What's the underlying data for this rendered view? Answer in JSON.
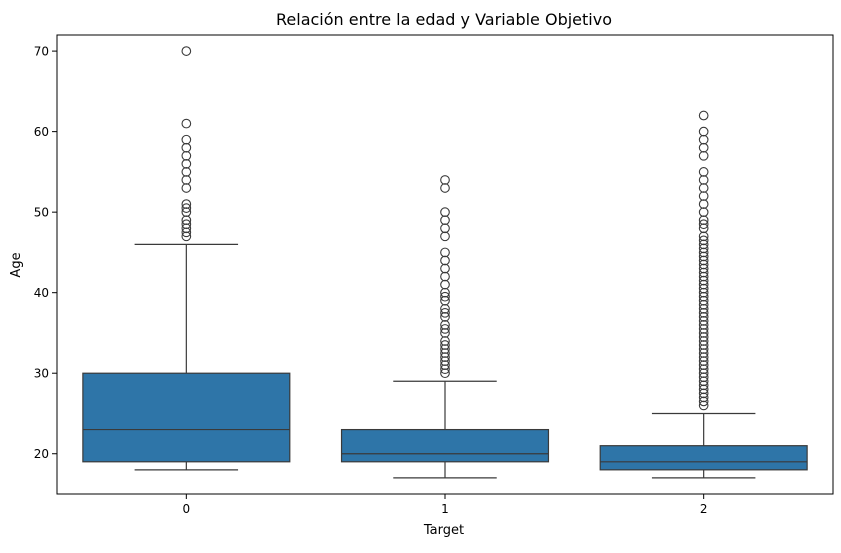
{
  "chart_data": {
    "type": "box",
    "title": "Relación entre la edad y Variable Objetivo",
    "xlabel": "Target",
    "ylabel": "Age",
    "categories": [
      "0",
      "1",
      "2"
    ],
    "ylim": [
      15,
      72
    ],
    "yticks": [
      20,
      30,
      40,
      50,
      60,
      70
    ],
    "grid": false,
    "box_color": "#2e75a8",
    "line_color": "#3a3a3a",
    "boxes": [
      {
        "category": "0",
        "whisker_low": 18,
        "q1": 19,
        "median": 23,
        "q3": 30,
        "whisker_high": 46,
        "outliers": [
          47,
          47.5,
          48,
          48.5,
          49,
          50,
          50.5,
          51,
          53,
          54,
          55,
          56,
          57,
          58,
          59,
          61,
          70
        ]
      },
      {
        "category": "1",
        "whisker_low": 17,
        "q1": 19,
        "median": 20,
        "q3": 23,
        "whisker_high": 29,
        "outliers": [
          30,
          30.5,
          31,
          31.5,
          32,
          32.5,
          33,
          33.5,
          34,
          35,
          35.5,
          36,
          37,
          37.5,
          38,
          39,
          39.5,
          40,
          41,
          42,
          43,
          44,
          45,
          47,
          48,
          49,
          50,
          53,
          54
        ]
      },
      {
        "category": "2",
        "whisker_low": 17,
        "q1": 18,
        "median": 19,
        "q3": 21,
        "whisker_high": 25,
        "outliers": [
          26,
          26.5,
          27,
          27.5,
          28,
          28.5,
          29,
          29.5,
          30,
          30.5,
          31,
          31.5,
          32,
          32.5,
          33,
          33.5,
          34,
          34.5,
          35,
          35.5,
          36,
          36.5,
          37,
          37.5,
          38,
          38.5,
          39,
          39.5,
          40,
          40.5,
          41,
          41.5,
          42,
          42.5,
          43,
          43.5,
          44,
          44.5,
          45,
          45.5,
          46,
          46.5,
          47,
          48,
          48.5,
          49,
          50,
          51,
          52,
          53,
          54,
          55,
          57,
          58,
          59,
          60,
          62
        ]
      }
    ]
  }
}
